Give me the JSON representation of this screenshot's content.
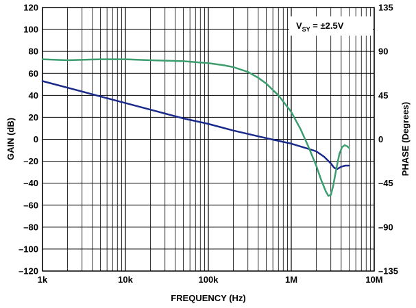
{
  "chart_data": {
    "type": "line",
    "xlabel": "FREQUENCY (Hz)",
    "ylabel": "GAIN (dB)",
    "y2label": "PHASE (Degrees)",
    "x_scale": "log",
    "xlim": [
      1000,
      10000000
    ],
    "ylim": [
      -120,
      120
    ],
    "y2lim": [
      -135,
      135
    ],
    "grid": true,
    "x_ticks": [
      {
        "value": 1000,
        "label": "1k"
      },
      {
        "value": 10000,
        "label": "10k"
      },
      {
        "value": 100000,
        "label": "100k"
      },
      {
        "value": 1000000,
        "label": "1M"
      },
      {
        "value": 10000000,
        "label": "10M"
      }
    ],
    "y_ticks": [
      {
        "value": 120,
        "label": "120"
      },
      {
        "value": 100,
        "label": "100"
      },
      {
        "value": 80,
        "label": "80"
      },
      {
        "value": 60,
        "label": "60"
      },
      {
        "value": 40,
        "label": "40"
      },
      {
        "value": 20,
        "label": "20"
      },
      {
        "value": 0,
        "label": "0"
      },
      {
        "value": -20,
        "label": "–20"
      },
      {
        "value": -40,
        "label": "–40"
      },
      {
        "value": -60,
        "label": "–60"
      },
      {
        "value": -80,
        "label": "–80"
      },
      {
        "value": -100,
        "label": "–100"
      },
      {
        "value": -120,
        "label": "–120"
      }
    ],
    "y2_ticks": [
      {
        "value": 135,
        "label": "135"
      },
      {
        "value": 90,
        "label": "90"
      },
      {
        "value": 45,
        "label": "45"
      },
      {
        "value": 0,
        "label": "0"
      },
      {
        "value": -45,
        "label": "–45"
      },
      {
        "value": -90,
        "label": "–90"
      },
      {
        "value": -135,
        "label": "–135"
      }
    ],
    "annotation": {
      "main": "V",
      "sub": "SY",
      "rest": " = ±2.5V"
    },
    "series": [
      {
        "axis": "y",
        "color": "#1a2a8a",
        "x": [
          1000,
          2000,
          5000,
          10000,
          20000,
          50000,
          100000,
          200000,
          500000,
          1000000,
          1500000,
          2000000,
          2500000,
          3000000,
          3300000,
          3600000,
          4000000,
          4500000,
          5000000
        ],
        "y": [
          53,
          47,
          39,
          33,
          27,
          19,
          14,
          8,
          1,
          -4,
          -8,
          -11,
          -16,
          -22,
          -26,
          -27,
          -25,
          -24,
          -24
        ]
      },
      {
        "axis": "y2",
        "color": "#3c9e6e",
        "x": [
          1000,
          2000,
          5000,
          10000,
          20000,
          50000,
          100000,
          150000,
          200000,
          300000,
          400000,
          500000,
          700000,
          1000000,
          1300000,
          1600000,
          2000000,
          2300000,
          2600000,
          2800000,
          3000000,
          3200000,
          3500000,
          3800000,
          4100000,
          4400000,
          4700000,
          5000000
        ],
        "y": [
          82,
          81,
          82,
          82,
          81,
          80,
          78,
          76,
          74,
          69,
          63,
          57,
          45,
          28,
          10,
          -7,
          -27,
          -42,
          -53,
          -58,
          -57,
          -48,
          -30,
          -15,
          -8,
          -6,
          -7,
          -9
        ]
      }
    ]
  }
}
